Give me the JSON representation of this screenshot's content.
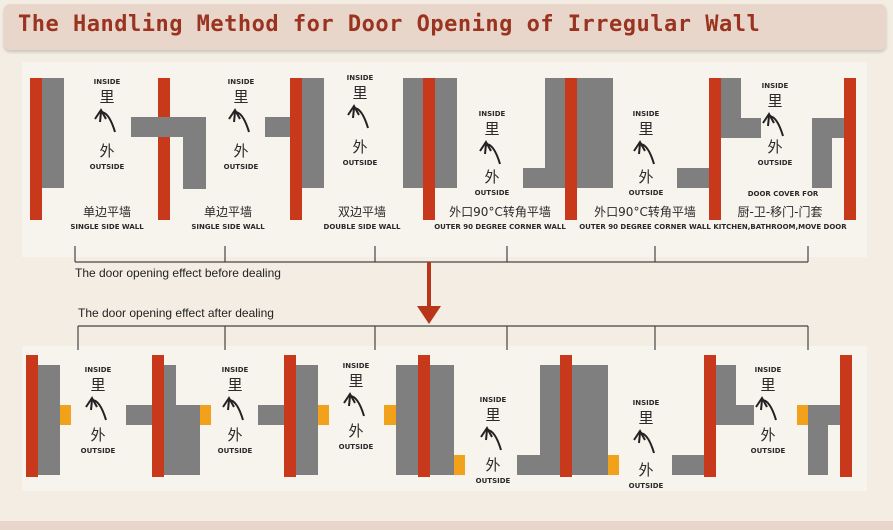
{
  "title": "The Handling Method for Door Opening of Irregular Wall",
  "labels": {
    "inside": "INSIDE",
    "inside_cn": "里",
    "outside": "OUTSIDE",
    "outside_cn": "外"
  },
  "top_captions": [
    {
      "cn": "单边平墙",
      "en": "SINGLE SIDE WALL"
    },
    {
      "cn": "单边平墙",
      "en": "SINGLE SIDE WALL"
    },
    {
      "cn": "双边平墙",
      "en": "DOUBLE SIDE WALL"
    },
    {
      "cn": "外口90°C转角平墙",
      "en": "OUTER 90 DEGREE CORNER WALL"
    },
    {
      "cn": "外口90°C转角平墙",
      "en": "OUTER 90 DEGREE CORNER WALL"
    },
    {
      "cn": "厨-卫-移门-门套",
      "en": "KITCHEN,BATHROOM,MOVE DOOR"
    }
  ],
  "top_extra_label": "DOOR COVER FOR",
  "before_label": "The door opening effect before dealing",
  "after_label": "The door opening effect after dealing",
  "colors": {
    "wall": "#7f7f7f",
    "frame": "#c8391c",
    "filler": "#f2a21a",
    "line": "#444444",
    "arrow": "#b8351a"
  }
}
